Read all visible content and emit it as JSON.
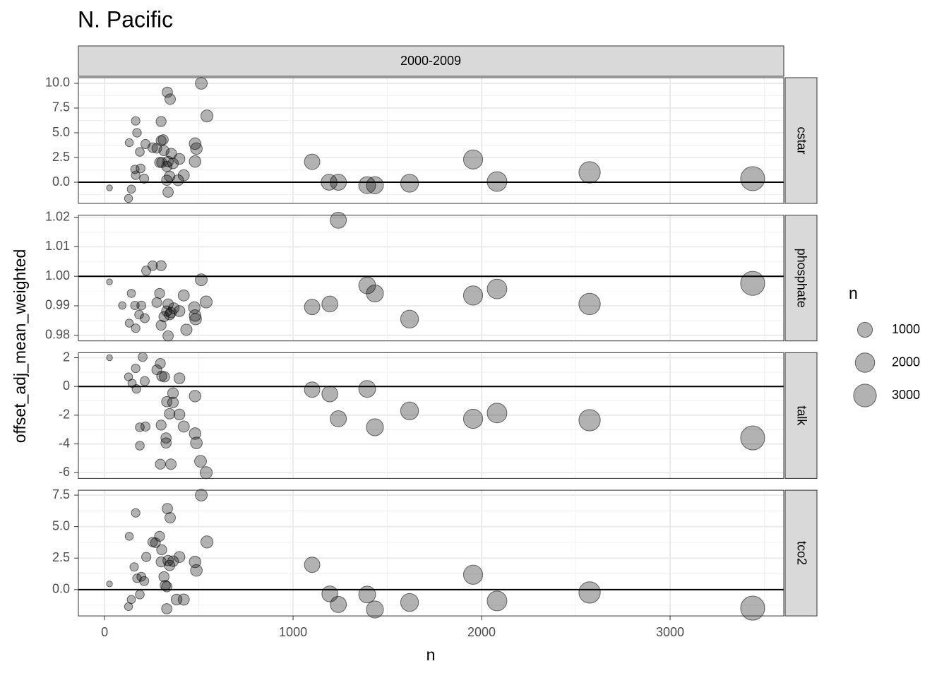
{
  "chart_data": {
    "type": "scatter",
    "title": "N. Pacific",
    "facet_label": "2000-2009",
    "xlabel": "n",
    "ylabel": "offset_adj_mean_weighted",
    "xlim": [
      -139,
      3603
    ],
    "xticks": [
      0,
      1000,
      2000,
      3000
    ],
    "color": "#000000",
    "alpha": 0.3,
    "grid": true,
    "size_legend": {
      "title": "n",
      "values": [
        1000,
        2000,
        3000
      ]
    },
    "panels": [
      {
        "name": "cstar",
        "ylim": [
          -2.14,
          10.57
        ],
        "hline": 0,
        "yticks": [
          {
            "value": 10,
            "label": "10.0"
          },
          7.5,
          {
            "value": 5,
            "label": "5.0"
          },
          2.5,
          {
            "value": 0,
            "label": "0.0"
          }
        ],
        "x": [
          1101,
          1191,
          1240,
          1393,
          1434,
          1618,
          1955,
          2082,
          2573,
          3438,
          26,
          142,
          127,
          131,
          165,
          172,
          187,
          161,
          165,
          191,
          210,
          217,
          255,
          277,
          300,
          300,
          292,
          315,
          330,
          333,
          348,
          330,
          337,
          337,
          354,
          363,
          345,
          390,
          397,
          420,
          480,
          480,
          487,
          513,
          543,
          311,
          303
        ],
        "values": [
          2.07,
          0.0,
          0.0,
          -0.3,
          -0.3,
          -0.1,
          2.3,
          0.07,
          1.0,
          0.36,
          -0.57,
          -0.7,
          -1.64,
          4.0,
          6.2,
          5.0,
          3.07,
          1.3,
          0.7,
          1.4,
          0.36,
          3.86,
          3.5,
          3.43,
          6.14,
          4.2,
          2.0,
          3.2,
          1.6,
          9.1,
          8.4,
          0.2,
          -1.0,
          2.1,
          2.9,
          1.9,
          0.6,
          0.2,
          2.36,
          0.7,
          2.1,
          3.9,
          3.4,
          10.0,
          6.7,
          4.3,
          2.0
        ]
      },
      {
        "name": "phosphate",
        "ylim": [
          0.9781,
          1.0207
        ],
        "hline": 1,
        "yticks": [
          1.02,
          1.01,
          {
            "value": 1,
            "label": "1.00"
          },
          0.99,
          0.98
        ],
        "x": [
          1101,
          1195,
          1240,
          1393,
          1434,
          1618,
          1955,
          2082,
          2573,
          3438,
          26,
          94,
          142,
          131,
          165,
          161,
          183,
          195,
          213,
          221,
          255,
          300,
          292,
          277,
          300,
          315,
          330,
          337,
          337,
          352,
          367,
          397,
          420,
          434,
          476,
          483,
          513,
          539,
          480,
          345
        ],
        "values": [
          0.9896,
          0.9906,
          1.019,
          0.9969,
          0.9942,
          0.9855,
          0.9935,
          0.9957,
          0.9906,
          0.9976,
          0.9981,
          0.9901,
          0.9942,
          0.9841,
          0.9824,
          0.9901,
          0.987,
          0.9901,
          0.9858,
          1.0019,
          1.0036,
          1.0036,
          0.9942,
          0.9911,
          0.9834,
          0.9863,
          0.9882,
          0.9798,
          0.9906,
          0.9877,
          0.9892,
          0.9882,
          0.9935,
          0.9819,
          0.9894,
          0.9855,
          0.9988,
          0.9913,
          0.9867,
          0.987
        ]
      },
      {
        "name": "talk",
        "ylim": [
          -6.4,
          2.35
        ],
        "hline": 0,
        "yticks": [
          2,
          0,
          -2,
          -4,
          -6
        ],
        "x": [
          1101,
          1195,
          1240,
          1393,
          1434,
          1618,
          1955,
          2082,
          2573,
          3438,
          26,
          127,
          146,
          165,
          169,
          187,
          187,
          217,
          202,
          213,
          277,
          296,
          300,
          303,
          318,
          326,
          326,
          330,
          345,
          363,
          363,
          296,
          352,
          397,
          397,
          420,
          480,
          480,
          487,
          509,
          539
        ],
        "values": [
          -0.22,
          -0.52,
          -2.25,
          -0.17,
          -2.84,
          -1.7,
          -2.25,
          -1.85,
          -2.35,
          -3.58,
          2.0,
          0.67,
          0.22,
          1.26,
          -0.17,
          -2.84,
          -4.12,
          -2.79,
          2.05,
          0.37,
          1.16,
          1.6,
          -2.69,
          0.72,
          0.67,
          -3.58,
          -3.93,
          -1.06,
          -1.9,
          -0.47,
          -1.11,
          -5.41,
          -5.41,
          0.57,
          -1.95,
          -2.79,
          -0.67,
          -3.28,
          -3.93,
          -5.21,
          -6.0
        ]
      },
      {
        "name": "tco2",
        "ylim": [
          -2.09,
          7.89
        ],
        "hline": 0,
        "yticks": [
          7.5,
          {
            "value": 5,
            "label": "5.0"
          },
          2.5,
          {
            "value": 0,
            "label": "0.0"
          }
        ],
        "x": [
          1101,
          1195,
          1240,
          1393,
          1434,
          1618,
          1955,
          2082,
          2573,
          3438,
          26,
          142,
          127,
          131,
          165,
          157,
          172,
          187,
          195,
          210,
          221,
          255,
          270,
          292,
          300,
          303,
          322,
          333,
          348,
          330,
          337,
          345,
          363,
          382,
          397,
          420,
          480,
          487,
          513,
          543,
          315,
          330
        ],
        "values": [
          1.97,
          -0.34,
          -1.18,
          -0.39,
          -1.58,
          -1.02,
          1.18,
          -0.9,
          -0.23,
          -1.47,
          0.45,
          -0.79,
          -1.35,
          4.23,
          6.09,
          1.8,
          0.9,
          -0.39,
          1.02,
          0.68,
          2.59,
          3.78,
          3.72,
          4.23,
          2.2,
          3.16,
          0.34,
          6.43,
          5.7,
          -1.52,
          2.31,
          1.92,
          2.26,
          -0.79,
          2.59,
          -0.79,
          2.2,
          1.52,
          7.5,
          3.78,
          1.02,
          0.23
        ]
      }
    ]
  }
}
